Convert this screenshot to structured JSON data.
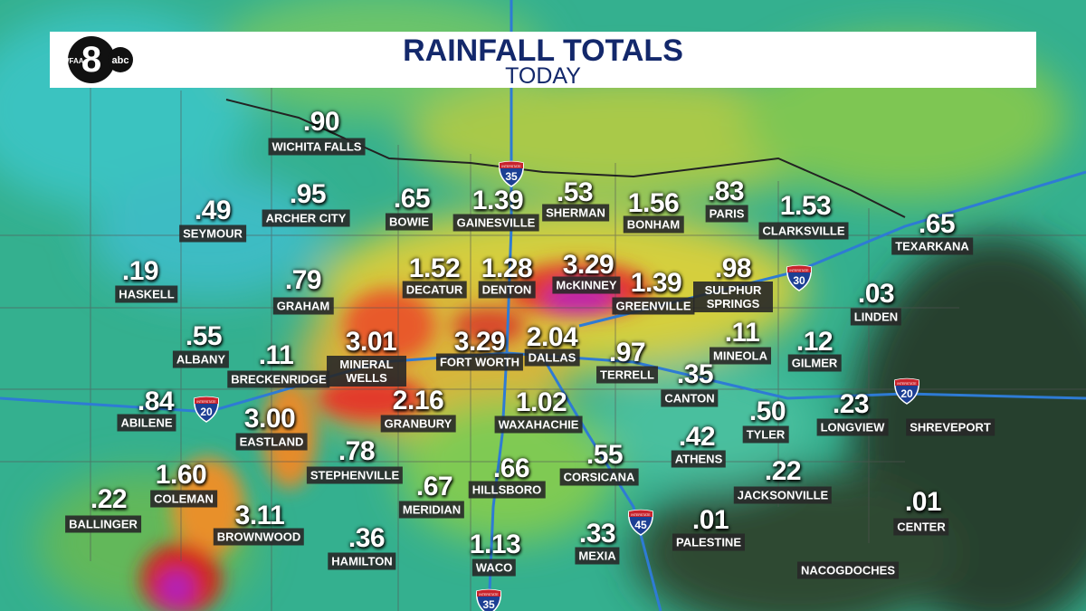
{
  "header": {
    "title": "RAINFALL TOTALS",
    "subtitle": "TODAY"
  },
  "logo": {
    "station": "WFAA",
    "number": "8",
    "network": "abc"
  },
  "shield_text": "INTERSTATE",
  "highways": [
    {
      "label": "35"
    },
    {
      "label": "35"
    },
    {
      "label": "20"
    },
    {
      "label": "20"
    },
    {
      "label": "30"
    },
    {
      "label": "45"
    }
  ],
  "cities": [
    {
      "name": "WICHITA FALLS",
      "total": ".90"
    },
    {
      "name": "SEYMOUR",
      "total": ".49"
    },
    {
      "name": "ARCHER CITY",
      "total": ".95"
    },
    {
      "name": "BOWIE",
      "total": ".65"
    },
    {
      "name": "GAINESVILLE",
      "total": "1.39"
    },
    {
      "name": "SHERMAN",
      "total": ".53"
    },
    {
      "name": "BONHAM",
      "total": "1.56"
    },
    {
      "name": "PARIS",
      "total": ".83"
    },
    {
      "name": "CLARKSVILLE",
      "total": "1.53"
    },
    {
      "name": "TEXARKANA",
      "total": ".65"
    },
    {
      "name": "HASKELL",
      "total": ".19"
    },
    {
      "name": "GRAHAM",
      "total": ".79"
    },
    {
      "name": "DECATUR",
      "total": "1.52"
    },
    {
      "name": "DENTON",
      "total": "1.28"
    },
    {
      "name": "McKINNEY",
      "total": "3.29"
    },
    {
      "name": "GREENVILLE",
      "total": "1.39"
    },
    {
      "name": "SULPHUR SPRINGS",
      "total": ".98"
    },
    {
      "name": "LINDEN",
      "total": ".03"
    },
    {
      "name": "ALBANY",
      "total": ".55"
    },
    {
      "name": "BRECKENRIDGE",
      "total": ".11"
    },
    {
      "name": "MINERAL WELLS",
      "total": "3.01"
    },
    {
      "name": "FORT WORTH",
      "total": "3.29"
    },
    {
      "name": "DALLAS",
      "total": "2.04"
    },
    {
      "name": "TERRELL",
      "total": ".97"
    },
    {
      "name": "MINEOLA",
      "total": ".11"
    },
    {
      "name": "GILMER",
      "total": ".12"
    },
    {
      "name": "CANTON",
      "total": ".35"
    },
    {
      "name": "ABILENE",
      "total": ".84"
    },
    {
      "name": "EASTLAND",
      "total": "3.00"
    },
    {
      "name": "GRANBURY",
      "total": "2.16"
    },
    {
      "name": "WAXAHACHIE",
      "total": "1.02"
    },
    {
      "name": "TYLER",
      "total": ".50"
    },
    {
      "name": "LONGVIEW",
      "total": ".23"
    },
    {
      "name": "SHREVEPORT"
    },
    {
      "name": "ATHENS",
      "total": ".42"
    },
    {
      "name": "STEPHENVILLE",
      "total": ".78"
    },
    {
      "name": "CORSICANA",
      "total": ".55"
    },
    {
      "name": "COLEMAN",
      "total": "1.60"
    },
    {
      "name": "HILLSBORO",
      "total": ".66"
    },
    {
      "name": "MERIDIAN",
      "total": ".67"
    },
    {
      "name": "JACKSONVILLE",
      "total": ".22"
    },
    {
      "name": "BALLINGER",
      "total": ".22"
    },
    {
      "name": "BROWNWOOD",
      "total": "3.11"
    },
    {
      "name": "CENTER",
      "total": ".01"
    },
    {
      "name": "MEXIA",
      "total": ".33"
    },
    {
      "name": "PALESTINE",
      "total": ".01"
    },
    {
      "name": "HAMILTON",
      "total": ".36"
    },
    {
      "name": "WACO",
      "total": "1.13"
    },
    {
      "name": "NACOGDOCHES"
    }
  ]
}
